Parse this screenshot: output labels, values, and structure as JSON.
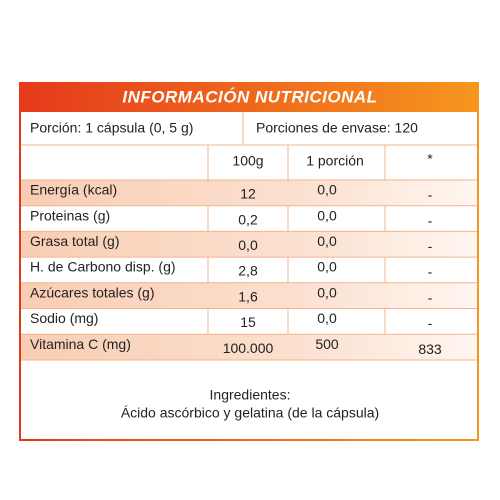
{
  "header": {
    "title": "INFORMACIÓN NUTRICIONAL"
  },
  "serving": {
    "portion": "Porción: 1 cápsula (0, 5 g)",
    "servings_per_container": "Porciones de envase: 120"
  },
  "table": {
    "columns": [
      "100g",
      "1 porción",
      "*"
    ],
    "rows": [
      [
        "Energía (kcal)",
        "12",
        "0,0",
        "-"
      ],
      [
        "Proteinas (g)",
        "0,2",
        "0,0",
        "-"
      ],
      [
        "Grasa total (g)",
        "0,0",
        "0,0",
        "-"
      ],
      [
        "H. de Carbono disp. (g)",
        "2,8",
        "0,0",
        "-"
      ],
      [
        "Azúcares totales (g)",
        "1,6",
        "0,0",
        "-"
      ],
      [
        "Sodio (mg)",
        "15",
        "0,0",
        "-"
      ],
      [
        "Vitamina C (mg)",
        "100.000",
        "500",
        "833"
      ]
    ]
  },
  "ingredients": {
    "heading": "Ingredientes:",
    "text": "Ácido ascórbico y gelatina (de la cápsula)"
  }
}
